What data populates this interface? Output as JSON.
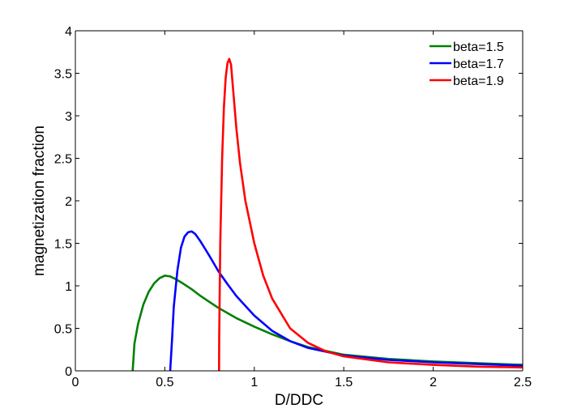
{
  "chart_data": {
    "type": "line",
    "title": "",
    "xlabel": "D/DDC",
    "ylabel": "magnetization fraction",
    "xlim": [
      0,
      2.5
    ],
    "ylim": [
      0,
      4
    ],
    "xticks": [
      "0",
      "0.5",
      "1",
      "1.5",
      "2",
      "2.5"
    ],
    "yticks": [
      "0",
      "0.5",
      "1",
      "1.5",
      "2",
      "2.5",
      "3",
      "3.5",
      "4"
    ],
    "grid": false,
    "legend": "top-right",
    "series": [
      {
        "name": "beta=1.5",
        "color": "#008000",
        "x": [
          0.32,
          0.33,
          0.35,
          0.38,
          0.41,
          0.44,
          0.47,
          0.5,
          0.53,
          0.56,
          0.6,
          0.65,
          0.7,
          0.8,
          0.9,
          1.0,
          1.1,
          1.2,
          1.3,
          1.5,
          1.75,
          2.0,
          2.25,
          2.5
        ],
        "y": [
          0,
          0.32,
          0.55,
          0.78,
          0.93,
          1.03,
          1.09,
          1.12,
          1.11,
          1.08,
          1.03,
          0.96,
          0.88,
          0.74,
          0.62,
          0.52,
          0.43,
          0.35,
          0.28,
          0.19,
          0.14,
          0.11,
          0.09,
          0.07
        ]
      },
      {
        "name": "beta=1.7",
        "color": "#0000ff",
        "x": [
          0.53,
          0.54,
          0.55,
          0.57,
          0.59,
          0.61,
          0.63,
          0.65,
          0.67,
          0.7,
          0.75,
          0.8,
          0.85,
          0.9,
          1.0,
          1.1,
          1.2,
          1.3,
          1.5,
          1.75,
          2.0,
          2.25,
          2.5
        ],
        "y": [
          0,
          0.35,
          0.75,
          1.18,
          1.45,
          1.58,
          1.63,
          1.64,
          1.61,
          1.52,
          1.35,
          1.17,
          1.02,
          0.88,
          0.65,
          0.47,
          0.35,
          0.27,
          0.18,
          0.13,
          0.1,
          0.08,
          0.06
        ]
      },
      {
        "name": "beta=1.9",
        "color": "#ff0000",
        "x": [
          0.803,
          0.804,
          0.81,
          0.82,
          0.83,
          0.84,
          0.85,
          0.86,
          0.87,
          0.88,
          0.9,
          0.92,
          0.95,
          1.0,
          1.05,
          1.1,
          1.2,
          1.3,
          1.4,
          1.5,
          1.75,
          2.0,
          2.25,
          2.5
        ],
        "y": [
          0,
          0.4,
          1.5,
          2.5,
          3.1,
          3.45,
          3.62,
          3.67,
          3.6,
          3.35,
          2.85,
          2.45,
          2.0,
          1.5,
          1.12,
          0.85,
          0.5,
          0.33,
          0.23,
          0.17,
          0.1,
          0.07,
          0.05,
          0.04
        ]
      }
    ]
  }
}
